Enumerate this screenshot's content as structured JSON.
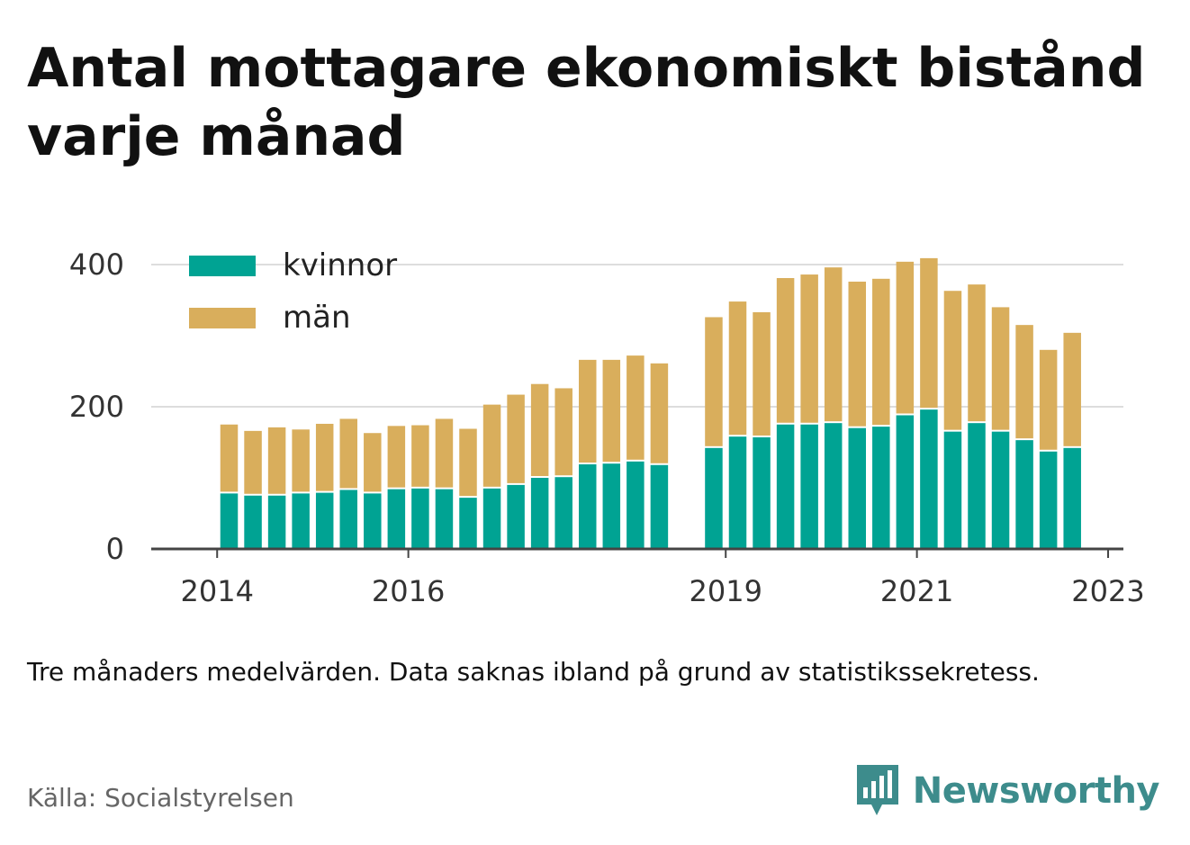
{
  "title": "Antal mottagare ekonomiskt bistånd varje månad",
  "note": "Tre månaders medelvärden. Data saknas ibland på grund av statistikssekretess.",
  "source": "Källa: Socialstyrelsen",
  "brand": {
    "name": "Newsworthy",
    "icon": "newsworthy-logo-icon",
    "color": "#3d8c8c"
  },
  "colors": {
    "kvinnor": "#00a393",
    "man": "#d9ae5c",
    "grid": "#dddddd",
    "axis": "#444444"
  },
  "chart_data": {
    "type": "bar",
    "stacked": true,
    "x_ticks": [
      {
        "label": "2014",
        "index": -1
      },
      {
        "label": "2016",
        "index": 7
      },
      {
        "label": "2019",
        "index": 19
      },
      {
        "label": "2021",
        "index": 27
      },
      {
        "label": "2023",
        "index": 35
      }
    ],
    "y_ticks": [
      "0",
      "200",
      "400"
    ],
    "ylim": [
      0,
      400
    ],
    "grid": true,
    "legend_position": "top-left",
    "gap_after_index": 18,
    "series": [
      {
        "name": "kvinnor",
        "values": [
          78,
          75,
          75,
          78,
          79,
          83,
          78,
          84,
          85,
          84,
          72,
          85,
          90,
          100,
          101,
          119,
          120,
          123,
          118,
          142,
          158,
          157,
          175,
          175,
          177,
          170,
          172,
          188,
          196,
          165,
          177,
          165,
          153,
          137,
          142
        ]
      },
      {
        "name": "män",
        "values": [
          97,
          91,
          96,
          90,
          97,
          100,
          85,
          89,
          89,
          99,
          97,
          118,
          127,
          132,
          125,
          147,
          146,
          149,
          143,
          184,
          190,
          176,
          206,
          211,
          219,
          206,
          208,
          216,
          213,
          198,
          195,
          175,
          162,
          143,
          162
        ]
      }
    ]
  }
}
